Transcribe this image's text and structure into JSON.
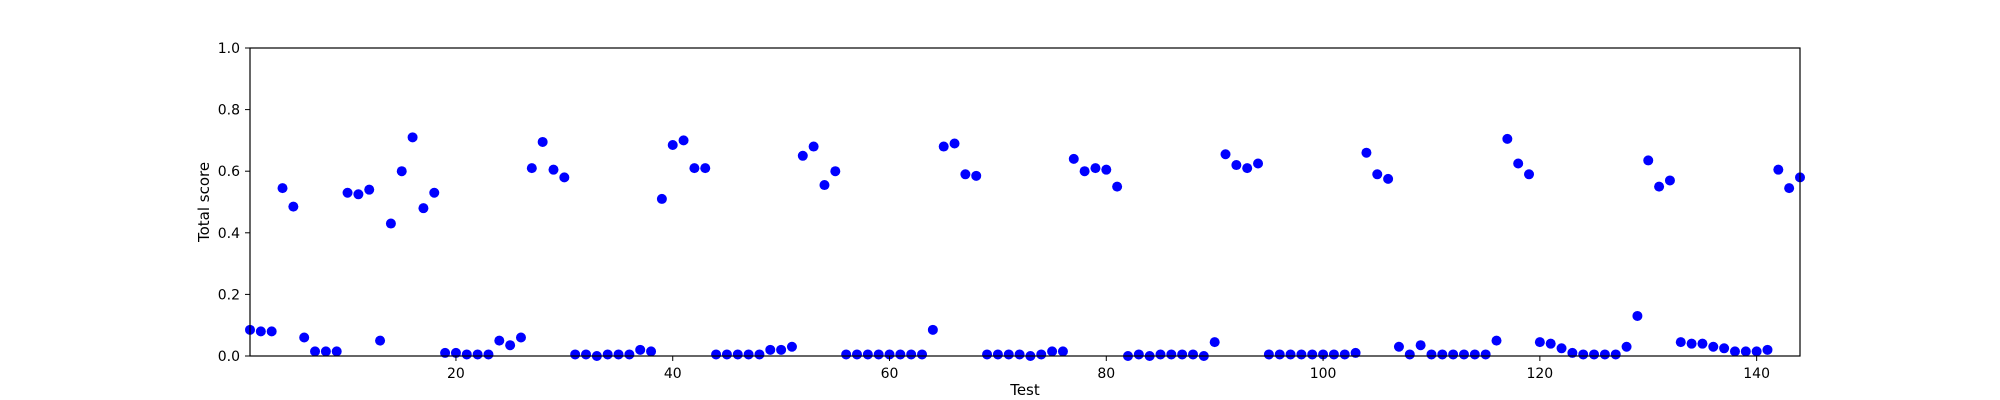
{
  "chart_data": {
    "type": "scatter",
    "title": "",
    "xlabel": "Test",
    "ylabel": "Total score",
    "xlim": [
      1,
      144
    ],
    "ylim": [
      0.0,
      1.0
    ],
    "x_ticks": [
      20,
      40,
      60,
      80,
      100,
      120,
      140
    ],
    "x_tick_labels": [
      "20",
      "40",
      "60",
      "80",
      "100",
      "120",
      "140"
    ],
    "y_ticks": [
      0.0,
      0.2,
      0.4,
      0.6,
      0.8,
      1.0
    ],
    "y_tick_labels": [
      "0.0",
      "0.2",
      "0.4",
      "0.6",
      "0.8",
      "1.0"
    ],
    "grid": false,
    "marker_color": "#0000ff",
    "series": [
      {
        "x": [
          1,
          2,
          3,
          4,
          5,
          6,
          7,
          8,
          9,
          10,
          11,
          12,
          13,
          14,
          15,
          16,
          17,
          18,
          19,
          20,
          21,
          22,
          23,
          24,
          25,
          26,
          27,
          28,
          29,
          30,
          31,
          32,
          33,
          34,
          35,
          36,
          37,
          38,
          39,
          40,
          41,
          42,
          43,
          44,
          45,
          46,
          47,
          48,
          49,
          50,
          51,
          52,
          53,
          54,
          55,
          56,
          57,
          58,
          59,
          60,
          61,
          62,
          63,
          64,
          65,
          66,
          67,
          68,
          69,
          70,
          71,
          72,
          73,
          74,
          75,
          76,
          77,
          78,
          79,
          80,
          81,
          82,
          83,
          84,
          85,
          86,
          87,
          88,
          89,
          90,
          91,
          92,
          93,
          94,
          95,
          96,
          97,
          98,
          99,
          100,
          101,
          102,
          103,
          104,
          105,
          106,
          107,
          108,
          109,
          110,
          111,
          112,
          113,
          114,
          115,
          116,
          117,
          118,
          119,
          120,
          121,
          122,
          123,
          124,
          125,
          126,
          127,
          128,
          129,
          130,
          131,
          132,
          133,
          134,
          135,
          136,
          137,
          138,
          139,
          140,
          141,
          142,
          143,
          144
        ],
        "y": [
          0.085,
          0.08,
          0.08,
          0.545,
          0.485,
          0.06,
          0.015,
          0.015,
          0.015,
          0.53,
          0.525,
          0.54,
          0.05,
          0.43,
          0.6,
          0.71,
          0.48,
          0.53,
          0.01,
          0.01,
          0.005,
          0.005,
          0.005,
          0.05,
          0.035,
          0.06,
          0.61,
          0.695,
          0.605,
          0.58,
          0.005,
          0.005,
          0.0,
          0.005,
          0.005,
          0.005,
          0.02,
          0.015,
          0.51,
          0.685,
          0.7,
          0.61,
          0.61,
          0.005,
          0.005,
          0.005,
          0.005,
          0.005,
          0.02,
          0.02,
          0.03,
          0.65,
          0.68,
          0.555,
          0.6,
          0.005,
          0.005,
          0.005,
          0.005,
          0.005,
          0.005,
          0.005,
          0.005,
          0.085,
          0.68,
          0.69,
          0.59,
          0.585,
          0.005,
          0.005,
          0.005,
          0.005,
          0.0,
          0.005,
          0.015,
          0.015,
          0.64,
          0.6,
          0.61,
          0.605,
          0.55,
          0.0,
          0.005,
          0.0,
          0.005,
          0.005,
          0.005,
          0.005,
          0.0,
          0.045,
          0.655,
          0.62,
          0.61,
          0.625,
          0.005,
          0.005,
          0.005,
          0.005,
          0.005,
          0.005,
          0.005,
          0.005,
          0.01,
          0.66,
          0.59,
          0.575,
          0.03,
          0.005,
          0.035,
          0.005,
          0.005,
          0.005,
          0.005,
          0.005,
          0.005,
          0.05,
          0.705,
          0.625,
          0.59,
          0.045,
          0.04,
          0.025,
          0.01,
          0.005,
          0.005,
          0.005,
          0.005,
          0.03,
          0.13,
          0.635,
          0.55,
          0.57,
          0.045,
          0.04,
          0.04,
          0.03,
          0.025,
          0.015,
          0.015,
          0.015,
          0.02,
          0.605,
          0.545,
          0.58
        ]
      }
    ]
  }
}
